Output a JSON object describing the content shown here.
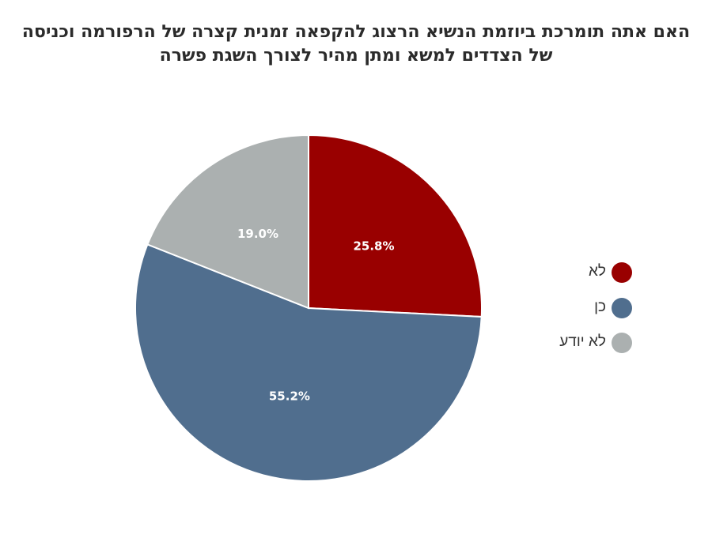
{
  "chart_data": {
    "type": "pie",
    "title_lines": [
      "האם אתה תומרכת ביוזמת הנשיא הרצוג להקפאה זמנית קצרה של הרפורמה וכניסה",
      "של הצדדים למשא ומתן מהיר לצורך השגת פשרה"
    ],
    "slices": [
      {
        "name": "לא",
        "value": 25.8,
        "label": "25.8%",
        "color": "#990000"
      },
      {
        "name": "כן",
        "value": 55.2,
        "label": "55.2%",
        "color": "#506e8e"
      },
      {
        "name": "לא יודע",
        "value": 19.0,
        "label": "19.0%",
        "color": "#abb0b0"
      }
    ],
    "legend_position": "right"
  }
}
